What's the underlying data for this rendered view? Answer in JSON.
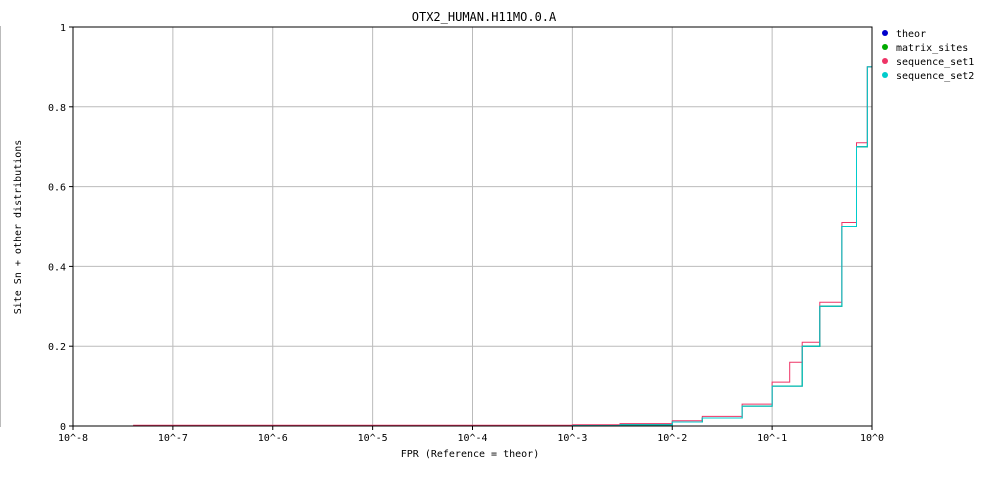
{
  "chart_data": {
    "type": "line",
    "title": "OTX2_HUMAN.H11MO.0.A",
    "xlabel": "FPR (Reference = theor)",
    "ylabel": "Site Sn + other distributions",
    "x_scale": "log",
    "xlim": [
      1e-08,
      1
    ],
    "ylim": [
      0,
      1
    ],
    "x_ticks": [
      "10^-8",
      "10^-7",
      "10^-6",
      "10^-5",
      "10^-4",
      "10^-3",
      "10^-2",
      "10^-1",
      "10^0"
    ],
    "y_ticks": [
      "0",
      "0.2",
      "0.4",
      "0.6",
      "0.8",
      "1"
    ],
    "grid": true,
    "legend": "right",
    "series": [
      {
        "name": "theor",
        "color": "#0000cc",
        "x": [
          0.001,
          0.003,
          0.01,
          0.02,
          0.05,
          0.1,
          0.2,
          0.3,
          0.5,
          0.7,
          0.9,
          1.0
        ],
        "y": [
          0.001,
          0.003,
          0.01,
          0.02,
          0.05,
          0.1,
          0.2,
          0.3,
          0.5,
          0.7,
          0.9,
          1.0
        ]
      },
      {
        "name": "matrix_sites",
        "color": "#00aa00",
        "x": [
          0.001,
          0.003,
          0.01,
          0.02,
          0.05,
          0.1,
          0.2,
          0.3,
          0.5,
          0.7,
          0.9,
          1.0
        ],
        "y": [
          0.001,
          0.003,
          0.01,
          0.02,
          0.05,
          0.1,
          0.2,
          0.3,
          0.5,
          0.7,
          0.9,
          1.0
        ]
      },
      {
        "name": "sequence_set1",
        "color": "#ee3366",
        "x": [
          4e-08,
          1e-07,
          1e-06,
          1e-05,
          0.0001,
          0.001,
          0.003,
          0.01,
          0.02,
          0.05,
          0.1,
          0.15,
          0.2,
          0.3,
          0.5,
          0.7,
          0.9,
          1.0
        ],
        "y": [
          0.002,
          0.002,
          0.002,
          0.002,
          0.002,
          0.003,
          0.006,
          0.013,
          0.024,
          0.055,
          0.11,
          0.16,
          0.21,
          0.31,
          0.51,
          0.71,
          0.9,
          1.0
        ]
      },
      {
        "name": "sequence_set2",
        "color": "#00cccc",
        "x": [
          1e-06,
          1e-05,
          0.0001,
          0.001,
          0.003,
          0.01,
          0.02,
          0.05,
          0.1,
          0.2,
          0.3,
          0.5,
          0.7,
          0.9,
          1.0
        ],
        "y": [
          0.0,
          0.0,
          0.0,
          0.001,
          0.003,
          0.01,
          0.02,
          0.05,
          0.1,
          0.2,
          0.3,
          0.5,
          0.7,
          0.9,
          1.0
        ]
      }
    ]
  }
}
